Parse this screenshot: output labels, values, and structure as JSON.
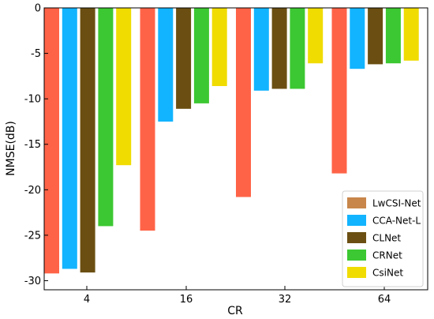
{
  "chart_data": {
    "type": "bar",
    "xlabel": "CR",
    "ylabel": "NMSE(dB)",
    "categories": [
      "4",
      "16",
      "32",
      "64"
    ],
    "ylim": [
      -31,
      0
    ],
    "yticks": [
      0,
      -5,
      -10,
      -15,
      -20,
      -25,
      -30
    ],
    "grid": false,
    "legend_position": "bottom-right",
    "series": [
      {
        "name": "LwCSI-Net",
        "color": "#ff6347",
        "legend_color": "#c8864a",
        "values": [
          -29.2,
          -24.5,
          -20.8,
          -18.2
        ]
      },
      {
        "name": "CCA-Net-L",
        "color": "#12b4ff",
        "legend_color": "#12b4ff",
        "values": [
          -28.7,
          -12.5,
          -9.1,
          -6.7
        ]
      },
      {
        "name": "CLNet",
        "color": "#6b4f12",
        "legend_color": "#6b4f12",
        "values": [
          -29.1,
          -11.1,
          -8.9,
          -6.2
        ]
      },
      {
        "name": "CRNet",
        "color": "#3cc832",
        "legend_color": "#3cc832",
        "values": [
          -24.0,
          -10.5,
          -8.9,
          -6.1
        ]
      },
      {
        "name": "CsiNet",
        "color": "#f0dc00",
        "legend_color": "#f0dc00",
        "values": [
          -17.3,
          -8.6,
          -6.1,
          -5.8
        ]
      }
    ]
  }
}
